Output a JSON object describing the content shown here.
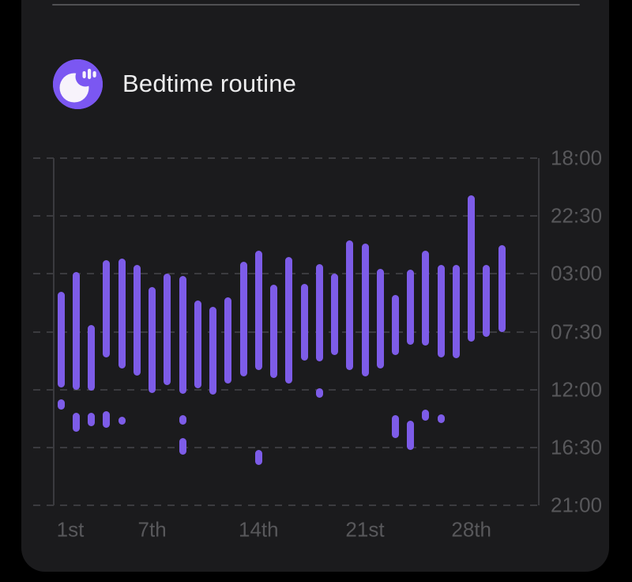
{
  "header": {
    "title": "Bedtime routine",
    "icon": "moon-with-sparks"
  },
  "colors": {
    "background": "#000000",
    "card": "#1b1b1d",
    "divider": "#505053",
    "bar_purple": "#7d5ce8",
    "icon_badge_purple": "#7b57f2",
    "icon_moon_white": "#f7f3fb",
    "grid_line": "#3b3b3f",
    "axis_text": "#58585b",
    "title_text": "#ededee"
  },
  "chart_data": {
    "type": "bar",
    "subtype": "vertical-time-range-bars",
    "title": "Bedtime routine",
    "x_axis": {
      "unit": "day-of-month",
      "num_days": 30,
      "tick_labels": [
        {
          "day": 1,
          "label": "1st"
        },
        {
          "day": 7,
          "label": "7th"
        },
        {
          "day": 14,
          "label": "14th"
        },
        {
          "day": 21,
          "label": "21st"
        },
        {
          "day": 28,
          "label": "28th"
        }
      ]
    },
    "y_axis": {
      "unit": "time-of-day",
      "direction": "down",
      "start": "18:00",
      "span_hours": 27,
      "tick_interval_hours": 4.5,
      "tick_labels": [
        "18:00",
        "22:30",
        "03:00",
        "07:30",
        "12:00",
        "16:30",
        "21:00"
      ],
      "grid": "dashed"
    },
    "days": [
      {
        "day": 1,
        "segments": [
          {
            "start": "04:25",
            "end": "11:50"
          },
          {
            "start": "12:45",
            "end": "13:35"
          }
        ]
      },
      {
        "day": 2,
        "segments": [
          {
            "start": "02:50",
            "end": "12:00"
          },
          {
            "start": "13:50",
            "end": "15:15"
          }
        ]
      },
      {
        "day": 3,
        "segments": [
          {
            "start": "07:00",
            "end": "12:05"
          },
          {
            "start": "13:50",
            "end": "14:50"
          }
        ]
      },
      {
        "day": 4,
        "segments": [
          {
            "start": "01:55",
            "end": "09:30"
          },
          {
            "start": "13:40",
            "end": "15:00"
          }
        ]
      },
      {
        "day": 5,
        "segments": [
          {
            "start": "01:50",
            "end": "10:20"
          },
          {
            "start": "14:05",
            "end": "14:45"
          }
        ]
      },
      {
        "day": 6,
        "segments": [
          {
            "start": "02:20",
            "end": "10:55"
          }
        ]
      },
      {
        "day": 7,
        "segments": [
          {
            "start": "04:00",
            "end": "12:15"
          }
        ]
      },
      {
        "day": 8,
        "segments": [
          {
            "start": "03:00",
            "end": "11:40"
          }
        ]
      },
      {
        "day": 9,
        "segments": [
          {
            "start": "03:10",
            "end": "12:20"
          },
          {
            "start": "14:00",
            "end": "14:45"
          },
          {
            "start": "15:45",
            "end": "17:05"
          }
        ]
      },
      {
        "day": 10,
        "segments": [
          {
            "start": "05:05",
            "end": "11:55"
          }
        ]
      },
      {
        "day": 11,
        "segments": [
          {
            "start": "05:35",
            "end": "12:25"
          }
        ]
      },
      {
        "day": 12,
        "segments": [
          {
            "start": "04:50",
            "end": "11:30"
          }
        ]
      },
      {
        "day": 13,
        "segments": [
          {
            "start": "02:05",
            "end": "11:00"
          }
        ]
      },
      {
        "day": 14,
        "segments": [
          {
            "start": "01:10",
            "end": "10:30"
          },
          {
            "start": "16:40",
            "end": "17:50"
          }
        ]
      },
      {
        "day": 15,
        "segments": [
          {
            "start": "03:50",
            "end": "11:05"
          }
        ]
      },
      {
        "day": 16,
        "segments": [
          {
            "start": "01:40",
            "end": "11:30"
          }
        ]
      },
      {
        "day": 17,
        "segments": [
          {
            "start": "03:45",
            "end": "09:45"
          }
        ]
      },
      {
        "day": 18,
        "segments": [
          {
            "start": "02:15",
            "end": "09:50"
          },
          {
            "start": "11:55",
            "end": "12:40"
          }
        ]
      },
      {
        "day": 19,
        "segments": [
          {
            "start": "03:00",
            "end": "09:20"
          }
        ]
      },
      {
        "day": 20,
        "segments": [
          {
            "start": "00:25",
            "end": "10:30"
          }
        ]
      },
      {
        "day": 21,
        "segments": [
          {
            "start": "00:40",
            "end": "11:00"
          }
        ]
      },
      {
        "day": 22,
        "segments": [
          {
            "start": "02:35",
            "end": "10:20"
          }
        ]
      },
      {
        "day": 23,
        "segments": [
          {
            "start": "04:40",
            "end": "09:20"
          },
          {
            "start": "14:00",
            "end": "15:45"
          }
        ]
      },
      {
        "day": 24,
        "segments": [
          {
            "start": "02:40",
            "end": "08:30"
          },
          {
            "start": "14:25",
            "end": "16:40"
          }
        ]
      },
      {
        "day": 25,
        "segments": [
          {
            "start": "01:10",
            "end": "08:35"
          },
          {
            "start": "13:35",
            "end": "14:25"
          }
        ]
      },
      {
        "day": 26,
        "segments": [
          {
            "start": "02:20",
            "end": "09:30"
          },
          {
            "start": "13:55",
            "end": "14:35"
          }
        ]
      },
      {
        "day": 27,
        "segments": [
          {
            "start": "02:20",
            "end": "09:35"
          }
        ]
      },
      {
        "day": 28,
        "segments": [
          {
            "start": "20:55",
            "end": "08:15"
          }
        ]
      },
      {
        "day": 29,
        "segments": [
          {
            "start": "02:20",
            "end": "07:55"
          }
        ]
      },
      {
        "day": 30,
        "segments": [
          {
            "start": "00:45",
            "end": "07:30"
          }
        ]
      }
    ]
  }
}
